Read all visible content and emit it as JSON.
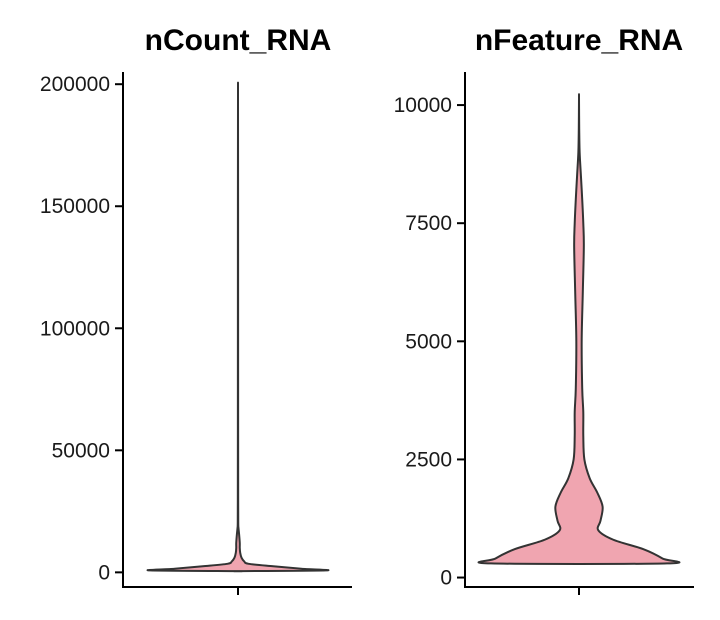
{
  "chart_data": [
    {
      "type": "violin",
      "title": "nCount_RNA",
      "xlabel": "",
      "ylabel": "",
      "ylim": [
        -6000,
        205000
      ],
      "yticks": [
        0,
        50000,
        100000,
        150000,
        200000
      ],
      "ytick_labels": [
        "0",
        "50000",
        "100000",
        "150000",
        "200000"
      ],
      "fill_color": "#f0a5b0",
      "outline_color": "#333333",
      "grid": false,
      "legend": "none",
      "range": [
        500,
        195000
      ],
      "density": [
        [
          500,
          0.0
        ],
        [
          800,
          1.0
        ],
        [
          1500,
          0.72
        ],
        [
          2500,
          0.4
        ],
        [
          3500,
          0.12
        ],
        [
          4500,
          0.07
        ],
        [
          6000,
          0.04
        ],
        [
          8000,
          0.025
        ],
        [
          10000,
          0.02
        ],
        [
          12000,
          0.02
        ],
        [
          15000,
          0.014
        ],
        [
          18000,
          0.006
        ],
        [
          20000,
          0.003
        ],
        [
          30000,
          0.002
        ],
        [
          60000,
          0.0015
        ],
        [
          100000,
          0.0012
        ],
        [
          150000,
          0.001
        ],
        [
          195000,
          0.0
        ]
      ]
    },
    {
      "type": "violin",
      "title": "nFeature_RNA",
      "xlabel": "",
      "ylabel": "",
      "ylim": [
        -200,
        10700
      ],
      "yticks": [
        0,
        2500,
        5000,
        7500,
        10000
      ],
      "ytick_labels": [
        "0",
        "2500",
        "5000",
        "7500",
        "10000"
      ],
      "fill_color": "#f0a5b0",
      "outline_color": "#333333",
      "grid": false,
      "legend": "none",
      "range": [
        300,
        10150
      ],
      "density": [
        [
          300,
          0.82
        ],
        [
          400,
          0.78
        ],
        [
          600,
          0.6
        ],
        [
          800,
          0.32
        ],
        [
          1000,
          0.18
        ],
        [
          1200,
          0.2
        ],
        [
          1500,
          0.22
        ],
        [
          1800,
          0.17
        ],
        [
          2100,
          0.1
        ],
        [
          2500,
          0.05
        ],
        [
          3000,
          0.04
        ],
        [
          3500,
          0.04
        ],
        [
          4000,
          0.03
        ],
        [
          5000,
          0.025
        ],
        [
          6000,
          0.035
        ],
        [
          7000,
          0.045
        ],
        [
          7500,
          0.04
        ],
        [
          8000,
          0.03
        ],
        [
          8500,
          0.018
        ],
        [
          9000,
          0.006
        ],
        [
          9500,
          0.002
        ],
        [
          10150,
          0.0
        ]
      ]
    }
  ]
}
